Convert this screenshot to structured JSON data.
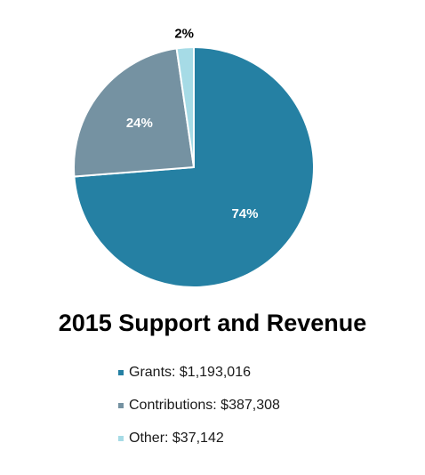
{
  "chart_data": {
    "type": "pie",
    "title": "2015 Support and Revenue",
    "categories": [
      "Grants",
      "Contributions",
      "Other"
    ],
    "values": [
      1193016,
      387308,
      37142
    ],
    "percent_labels": [
      "74%",
      "24%",
      "2%"
    ],
    "legend_entries": [
      "Grants: $1,193,016",
      "Contributions: $387,308",
      "Other: $37,142"
    ],
    "colors": [
      "#2580a3",
      "#7592a2",
      "#a6dbe6"
    ],
    "label_colors": [
      "#ffffff",
      "#ffffff",
      "#000000"
    ],
    "legend_placement": "bottom"
  }
}
